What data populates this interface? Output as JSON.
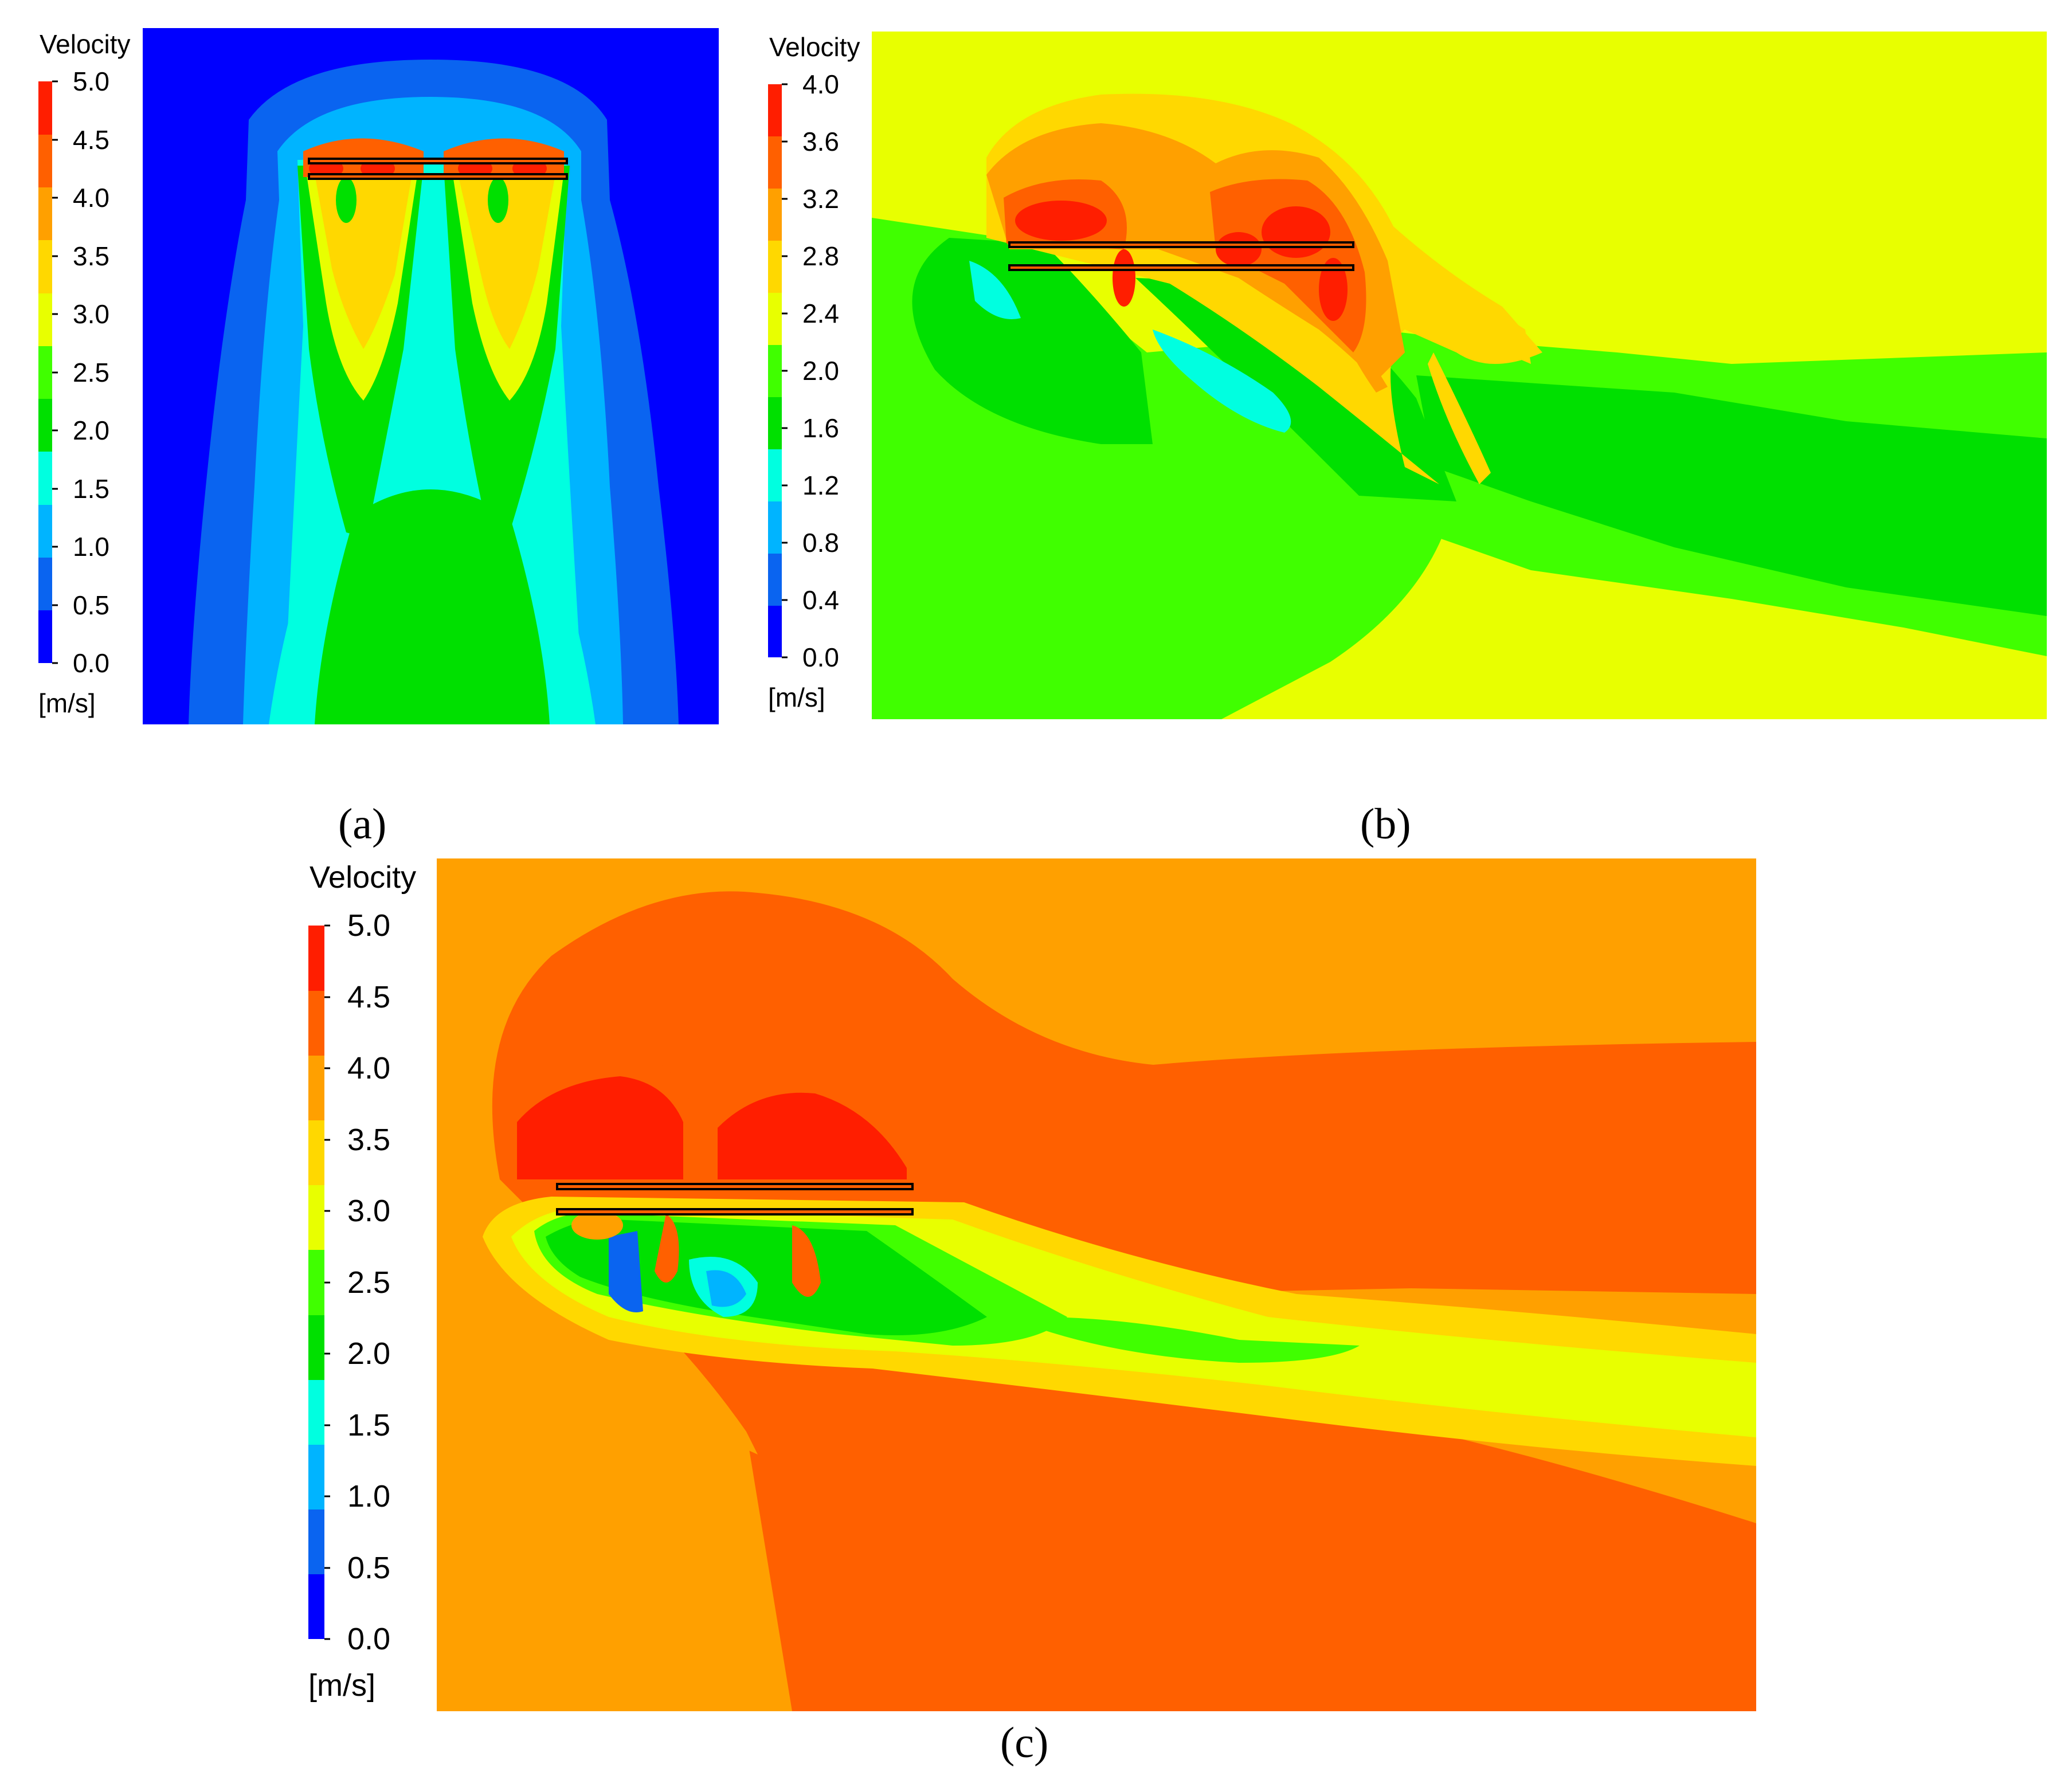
{
  "chart_data": [
    {
      "type": "heatmap",
      "panel_label": "(a)",
      "colorbar": {
        "title": "Velocity",
        "unit": "[m/s]",
        "ticks": [
          "0.0",
          "0.5",
          "1.0",
          "1.5",
          "2.0",
          "2.5",
          "3.0",
          "3.5",
          "4.0",
          "4.5",
          "5.0"
        ],
        "range": [
          0,
          5
        ],
        "colors": [
          "#0000ff",
          "#0a64f0",
          "#00b4ff",
          "#00ffe0",
          "#00e000",
          "#40ff00",
          "#e8ff00",
          "#ffd800",
          "#ffa000",
          "#ff6000",
          "#ff1e00"
        ]
      }
    },
    {
      "type": "heatmap",
      "panel_label": "(b)",
      "colorbar": {
        "title": "Velocity",
        "unit": "[m/s]",
        "ticks": [
          "0.0",
          "0.4",
          "0.8",
          "1.2",
          "1.6",
          "2.0",
          "2.4",
          "2.8",
          "3.2",
          "3.6",
          "4.0"
        ],
        "range": [
          0,
          4
        ],
        "colors": [
          "#0000ff",
          "#0a64f0",
          "#00b4ff",
          "#00ffe0",
          "#00e000",
          "#40ff00",
          "#e8ff00",
          "#ffd800",
          "#ffa000",
          "#ff6000",
          "#ff1e00"
        ]
      }
    },
    {
      "type": "heatmap",
      "panel_label": "(c)",
      "colorbar": {
        "title": "Velocity",
        "unit": "[m/s]",
        "ticks": [
          "0.0",
          "0.5",
          "1.0",
          "1.5",
          "2.0",
          "2.5",
          "3.0",
          "3.5",
          "4.0",
          "4.5",
          "5.0"
        ],
        "range": [
          0,
          5
        ],
        "colors": [
          "#0000ff",
          "#0a64f0",
          "#00b4ff",
          "#00ffe0",
          "#00e000",
          "#40ff00",
          "#e8ff00",
          "#ffd800",
          "#ffa000",
          "#ff6000",
          "#ff1e00"
        ]
      }
    }
  ]
}
